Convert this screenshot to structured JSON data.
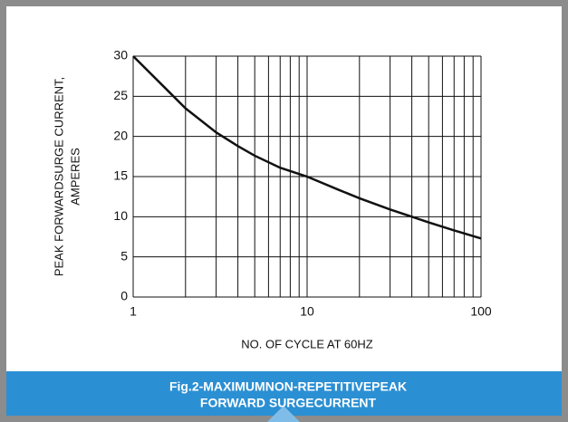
{
  "chart_data": {
    "type": "line",
    "ylabel": [
      "PEAK FORWARDSURGE CURRENT,",
      "AMPERES"
    ],
    "xlabel": "NO. OF CYCLE AT 60HZ",
    "caption": [
      "Fig.2-MAXIMUMNON-REPETITIVEPEAK",
      "FORWARD SURGECURRENT"
    ],
    "x": [
      1,
      1.5,
      2,
      3,
      4,
      5,
      7,
      10,
      15,
      20,
      30,
      40,
      50,
      70,
      100
    ],
    "series": [
      {
        "name": "surge",
        "color": "#111111",
        "values": [
          30,
          26.2,
          23.5,
          20.5,
          18.8,
          17.6,
          16.1,
          15,
          13.4,
          12.3,
          10.9,
          10,
          9.3,
          8.3,
          7.3
        ]
      }
    ],
    "xlim": [
      1,
      100
    ],
    "xticks": [
      1,
      10,
      100
    ],
    "log_x": true,
    "x_minor_grid": [
      2,
      3,
      4,
      5,
      6,
      7,
      8,
      9,
      20,
      30,
      40,
      50,
      60,
      70,
      80,
      90
    ],
    "ylim": [
      0,
      30
    ],
    "yticks": [
      0,
      5,
      10,
      15,
      20,
      25,
      30
    ],
    "grid": true
  }
}
